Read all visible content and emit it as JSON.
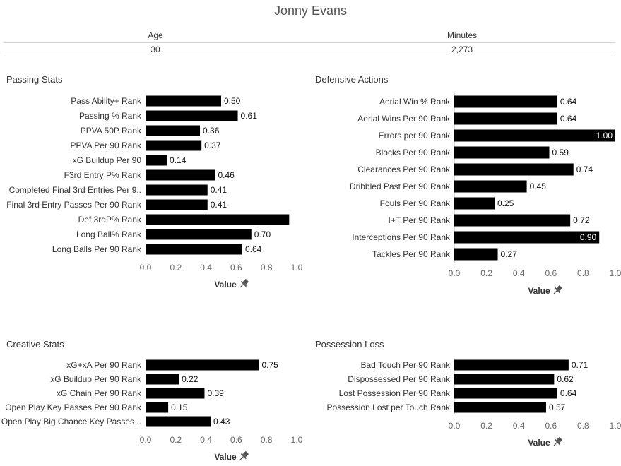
{
  "title": "Jonny Evans",
  "stats": [
    {
      "label": "Age",
      "value": "30"
    },
    {
      "label": "Minutes",
      "value": "2,273"
    }
  ],
  "axis_label": "Value",
  "pin_icon": "pin-icon",
  "colors": {
    "bar": "#000000",
    "text": "#333333",
    "axis": "#666666"
  },
  "chart_data": [
    {
      "type": "bar",
      "orientation": "horizontal",
      "title": "Passing Stats",
      "categories": [
        "Pass Ability+ Rank",
        "Passing % Rank",
        "PPVA 50P Rank",
        "PPVA Per 90 Rank",
        "xG Buildup Per 90",
        "F3rd Entry P% Rank",
        "Completed Final 3rd Entries Per 9..",
        "Final 3rd Entry Passes Per 90 Rank",
        "Def 3rdP% Rank",
        "Long Ball% Rank",
        "Long Balls Per 90  Rank"
      ],
      "values": [
        0.5,
        0.61,
        0.36,
        0.37,
        0.14,
        0.46,
        0.41,
        0.41,
        0.95,
        0.7,
        0.64
      ],
      "value_labels": [
        "0.50",
        "0.61",
        "0.36",
        "0.37",
        "0.14",
        "0.46",
        "0.41",
        "0.41",
        "",
        "0.70",
        "0.64"
      ],
      "ticks": [
        "0.0",
        "0.2",
        "0.4",
        "0.6",
        "0.8",
        "1.0"
      ],
      "xlabel": "Value",
      "xlim": [
        0,
        1.0
      ]
    },
    {
      "type": "bar",
      "orientation": "horizontal",
      "title": "Defensive Actions",
      "categories": [
        "Aerial Win % Rank",
        "Aerial Wins Per 90 Rank",
        "Errors per 90 Rank",
        "Blocks Per 90 Rank",
        "Clearances Per 90 Rank",
        "Dribbled Past Per 90 Rank",
        "Fouls Per 90 Rank",
        "I+T Per 90 Rank",
        "Interceptions Per 90 Rank",
        "Tackles Per 90 Rank"
      ],
      "values": [
        0.64,
        0.64,
        1.0,
        0.59,
        0.74,
        0.45,
        0.25,
        0.72,
        0.9,
        0.27
      ],
      "value_labels": [
        "0.64",
        "0.64",
        "1.00",
        "0.59",
        "0.74",
        "0.45",
        "0.25",
        "0.72",
        "0.90",
        "0.27"
      ],
      "ticks": [
        "0.0",
        "0.2",
        "0.4",
        "0.6",
        "0.8",
        "1.0"
      ],
      "xlabel": "Value",
      "xlim": [
        0,
        1.0
      ]
    },
    {
      "type": "bar",
      "orientation": "horizontal",
      "title": "Creative Stats",
      "categories": [
        "xG+xA Per 90 Rank",
        "xG Buildup Per 90 Rank",
        "xG Chain Per 90 Rank",
        "Open Play Key Passes Per 90 Rank",
        "Open Play Big Chance Key Passes .."
      ],
      "values": [
        0.75,
        0.22,
        0.39,
        0.15,
        0.43
      ],
      "value_labels": [
        "0.75",
        "0.22",
        "0.39",
        "0.15",
        "0.43"
      ],
      "ticks": [
        "0.0",
        "0.2",
        "0.4",
        "0.6",
        "0.8",
        "1.0"
      ],
      "xlabel": "Value",
      "xlim": [
        0,
        1.0
      ]
    },
    {
      "type": "bar",
      "orientation": "horizontal",
      "title": "Possession Loss",
      "categories": [
        "Bad Touch Per 90 Rank",
        "Dispossessed Per 90 Rank",
        "Lost Possession Per 90 Rank",
        "Possession Lost per Touch Rank"
      ],
      "values": [
        0.71,
        0.62,
        0.64,
        0.57
      ],
      "value_labels": [
        "0.71",
        "0.62",
        "0.64",
        "0.57"
      ],
      "ticks": [
        "0.0",
        "0.2",
        "0.4",
        "0.6",
        "0.8",
        "1.0"
      ],
      "xlabel": "Value",
      "xlim": [
        0,
        1.0
      ]
    }
  ]
}
